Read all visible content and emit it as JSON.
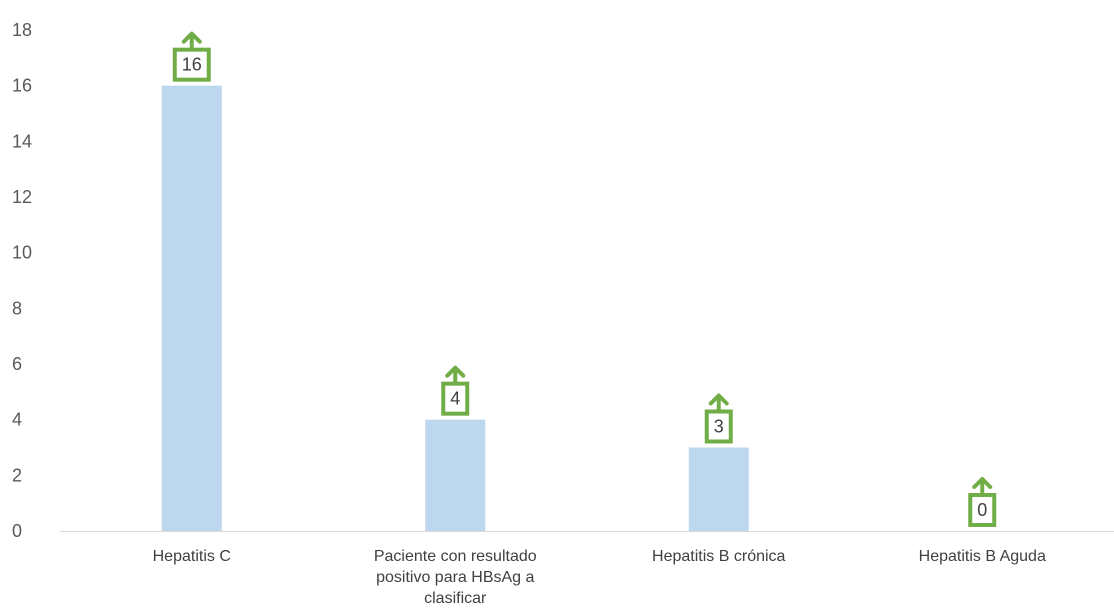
{
  "chart_data": {
    "type": "bar",
    "categories": [
      "Hepatitis C",
      "Paciente con resultado positivo para HBsAg a clasificar",
      "Hepatitis B crónica",
      "Hepatitis B Aguda"
    ],
    "category_lines": [
      [
        "Hepatitis C"
      ],
      [
        "Paciente con resultado",
        "positivo para HBsAg a",
        "clasificar"
      ],
      [
        "Hepatitis B crónica"
      ],
      [
        "Hepatitis B Aguda"
      ]
    ],
    "values": [
      16,
      4,
      3,
      0
    ],
    "data_labels": [
      "16",
      "4",
      "3",
      "0"
    ],
    "yticks": [
      "0",
      "2",
      "4",
      "6",
      "8",
      "10",
      "12",
      "14",
      "16",
      "18"
    ],
    "ylim": [
      0,
      18
    ],
    "title": "",
    "xlabel": "",
    "ylabel": "",
    "grid": false,
    "legend": "none",
    "colors": {
      "bar": "#bdd7ee",
      "label_box": "#70ad47",
      "axis": "#d9d9d9"
    }
  }
}
